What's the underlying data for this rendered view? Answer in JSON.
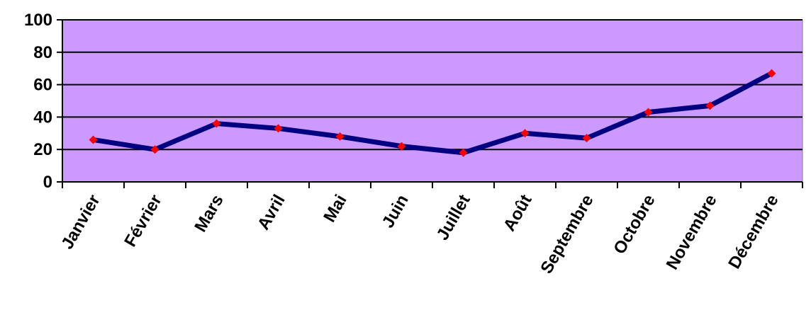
{
  "chart_data": {
    "type": "line",
    "title": "",
    "xlabel": "",
    "ylabel": "",
    "categories": [
      "Janvier",
      "Février",
      "Mars",
      "Avril",
      "Mai",
      "Juin",
      "Juillet",
      "Août",
      "Septembre",
      "Octobre",
      "Novembre",
      "Décembre"
    ],
    "series": [
      {
        "values": [
          26,
          20,
          36,
          33,
          28,
          22,
          18,
          30,
          27,
          43,
          47,
          67
        ]
      }
    ],
    "ylim": [
      0,
      100
    ],
    "yticks": [
      "0",
      "20",
      "40",
      "60",
      "80",
      "100"
    ],
    "grid": true,
    "legend": "none",
    "colors": {
      "plot_background": "#cc99ff",
      "line": "#000080",
      "marker": "#ff0000",
      "gridline": "#000000"
    }
  }
}
